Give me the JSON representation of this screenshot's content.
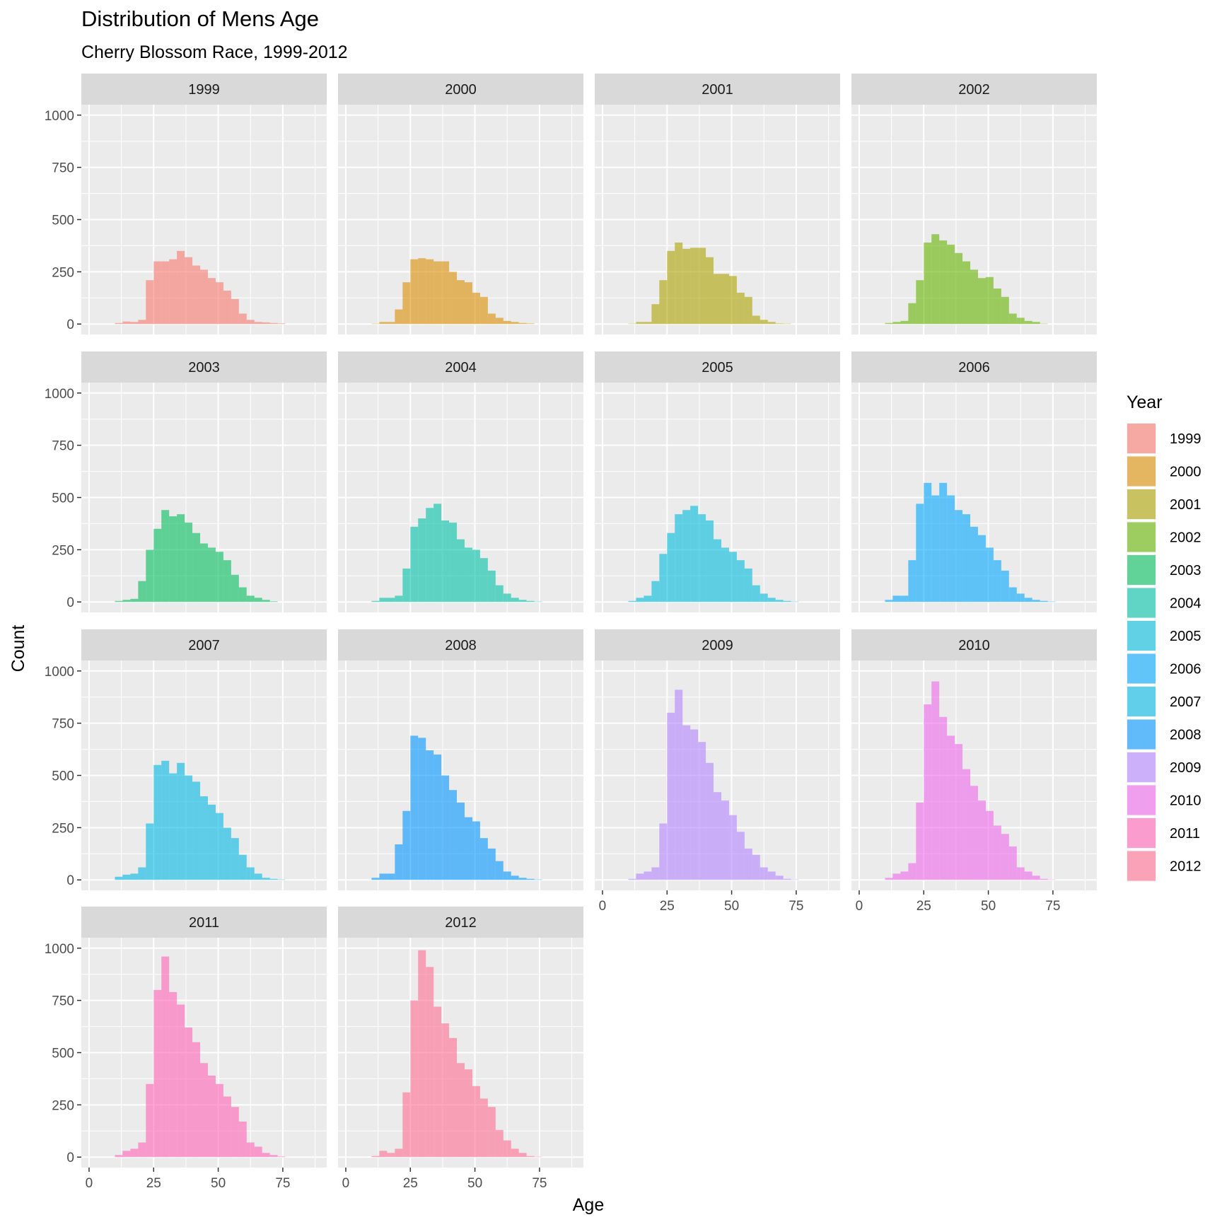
{
  "chart_data": {
    "type": "bar",
    "subtype": "faceted-histogram",
    "title": "Distribution of Mens Age",
    "subtitle": "Cherry Blossom Race, 1999-2012",
    "xlabel": "Age",
    "ylabel": "Count",
    "xlim": [
      -3,
      92
    ],
    "ylim": [
      -50,
      1050
    ],
    "x_ticks": [
      0,
      25,
      50,
      75
    ],
    "y_ticks": [
      0,
      250,
      500,
      750,
      1000
    ],
    "grid": true,
    "facet_columns": 4,
    "bin_start": 10,
    "bin_width": 3,
    "legend": {
      "title": "Year",
      "position": "right"
    },
    "series": [
      {
        "name": "1999",
        "color": "#F8766D",
        "values": [
          5,
          12,
          10,
          20,
          210,
          300,
          300,
          310,
          350,
          320,
          280,
          260,
          220,
          200,
          160,
          120,
          50,
          20,
          10,
          8,
          5,
          3
        ]
      },
      {
        "name": "2000",
        "color": "#DB8E00",
        "values": [
          2,
          10,
          10,
          70,
          200,
          310,
          315,
          310,
          300,
          300,
          250,
          210,
          200,
          150,
          130,
          50,
          30,
          15,
          10,
          5,
          3,
          0
        ]
      },
      {
        "name": "2001",
        "color": "#AEA200",
        "values": [
          2,
          10,
          10,
          95,
          210,
          350,
          390,
          360,
          365,
          365,
          320,
          240,
          240,
          230,
          150,
          130,
          40,
          20,
          10,
          3,
          2,
          0
        ]
      },
      {
        "name": "2002",
        "color": "#64B200",
        "values": [
          5,
          10,
          15,
          100,
          210,
          390,
          430,
          400,
          380,
          340,
          300,
          260,
          220,
          225,
          170,
          130,
          50,
          30,
          15,
          10,
          2,
          0
        ]
      },
      {
        "name": "2003",
        "color": "#00BD5C",
        "values": [
          5,
          10,
          15,
          100,
          250,
          350,
          440,
          410,
          420,
          380,
          330,
          280,
          260,
          240,
          200,
          130,
          70,
          30,
          20,
          10,
          3,
          0
        ]
      },
      {
        "name": "2004",
        "color": "#00C1A7",
        "values": [
          5,
          20,
          20,
          30,
          160,
          360,
          400,
          450,
          470,
          390,
          380,
          300,
          260,
          250,
          210,
          150,
          80,
          40,
          20,
          10,
          5,
          2
        ]
      },
      {
        "name": "2005",
        "color": "#00BADE",
        "values": [
          5,
          20,
          30,
          100,
          230,
          330,
          420,
          440,
          460,
          420,
          390,
          300,
          260,
          240,
          200,
          160,
          80,
          40,
          20,
          10,
          5,
          2
        ]
      },
      {
        "name": "2006",
        "color": "#00A6FF",
        "values": [
          10,
          30,
          30,
          200,
          470,
          570,
          510,
          570,
          510,
          440,
          420,
          360,
          320,
          260,
          200,
          150,
          70,
          40,
          20,
          10,
          5,
          2
        ]
      },
      {
        "name": "2007",
        "color": "#00B8E5",
        "values": [
          15,
          25,
          30,
          60,
          270,
          550,
          570,
          510,
          560,
          500,
          470,
          400,
          360,
          320,
          250,
          200,
          120,
          60,
          30,
          10,
          5,
          2
        ]
      },
      {
        "name": "2008",
        "color": "#0096FF",
        "values": [
          10,
          30,
          30,
          170,
          330,
          690,
          680,
          620,
          600,
          500,
          430,
          370,
          300,
          280,
          200,
          150,
          90,
          40,
          20,
          10,
          5,
          2
        ]
      },
      {
        "name": "2009",
        "color": "#B385FF",
        "values": [
          5,
          30,
          40,
          60,
          270,
          800,
          910,
          740,
          720,
          660,
          560,
          420,
          380,
          310,
          230,
          150,
          120,
          60,
          40,
          20,
          5,
          2
        ]
      },
      {
        "name": "2010",
        "color": "#EF67EB",
        "values": [
          10,
          30,
          40,
          80,
          370,
          840,
          950,
          780,
          690,
          650,
          530,
          450,
          380,
          330,
          260,
          220,
          160,
          60,
          40,
          20,
          5,
          2
        ]
      },
      {
        "name": "2011",
        "color": "#FF63B6",
        "values": [
          10,
          30,
          40,
          70,
          350,
          800,
          960,
          790,
          730,
          620,
          550,
          450,
          390,
          350,
          290,
          240,
          170,
          70,
          50,
          20,
          10,
          3
        ]
      },
      {
        "name": "2012",
        "color": "#FF6C91",
        "values": [
          5,
          30,
          20,
          40,
          310,
          750,
          990,
          910,
          720,
          640,
          570,
          450,
          420,
          340,
          280,
          240,
          130,
          80,
          40,
          20,
          5,
          2
        ]
      }
    ]
  }
}
